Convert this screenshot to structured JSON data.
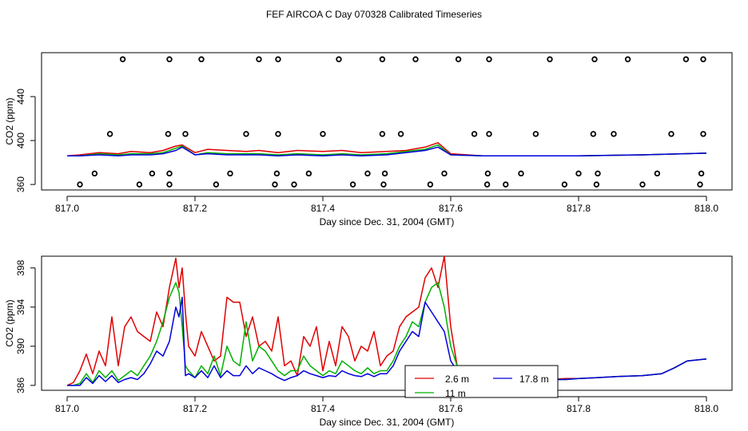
{
  "figure_title": "FEF AIRCOA C  Day 070328  Calibrated Timeseries",
  "colors": {
    "red": "#e00000",
    "green": "#00b000",
    "blue": "#0000dd",
    "black": "#000000"
  },
  "chart_data": [
    {
      "type": "line",
      "title": "",
      "xlabel": "Day since Dec. 31, 2004 (GMT)",
      "ylabel": "CO2 (ppm)",
      "xlim": [
        816.96,
        818.04
      ],
      "ylim": [
        355,
        480
      ],
      "x_ticks": [
        817.0,
        817.2,
        817.4,
        817.6,
        817.8,
        818.0
      ],
      "x_tick_labels": [
        "817.0",
        "817.2",
        "817.4",
        "817.6",
        "817.8",
        "818.0"
      ],
      "y_ticks": [
        360,
        400,
        440
      ],
      "y_tick_labels": [
        "360",
        "400",
        "440"
      ],
      "series": [
        {
          "name": "2.6 m",
          "color": "#e00000",
          "x": [
            817.0,
            817.02,
            817.05,
            817.08,
            817.1,
            817.13,
            817.15,
            817.17,
            817.18,
            817.2,
            817.22,
            817.25,
            817.28,
            817.3,
            817.33,
            817.36,
            817.4,
            817.43,
            817.46,
            817.5,
            817.53,
            817.56,
            817.58,
            817.6,
            817.65,
            817.7,
            817.8,
            817.9,
            818.0
          ],
          "values": [
            386,
            387,
            389,
            388,
            390,
            389,
            391,
            395,
            396,
            389,
            392,
            391,
            390,
            391,
            389,
            391,
            390,
            391,
            389,
            390,
            391,
            394,
            398,
            388,
            386,
            386,
            386,
            387,
            388.5
          ]
        },
        {
          "name": "11 m",
          "color": "#00b000",
          "x": [
            817.0,
            817.02,
            817.05,
            817.08,
            817.1,
            817.13,
            817.15,
            817.17,
            817.18,
            817.2,
            817.22,
            817.25,
            817.28,
            817.3,
            817.33,
            817.36,
            817.4,
            817.43,
            817.46,
            817.5,
            817.53,
            817.56,
            817.58,
            817.6,
            817.65,
            817.7,
            817.8,
            817.9,
            818.0
          ],
          "values": [
            386,
            386,
            388,
            387,
            388,
            388,
            389,
            393,
            395,
            387,
            389,
            388,
            388,
            388,
            387,
            388,
            387,
            388,
            387,
            388,
            390,
            392,
            396,
            387,
            386,
            386,
            386,
            387,
            388.5
          ]
        },
        {
          "name": "17.8 m",
          "color": "#0000dd",
          "x": [
            817.0,
            817.02,
            817.05,
            817.08,
            817.1,
            817.13,
            817.15,
            817.17,
            817.18,
            817.2,
            817.22,
            817.25,
            817.28,
            817.3,
            817.33,
            817.36,
            817.4,
            817.43,
            817.46,
            817.5,
            817.53,
            817.56,
            817.58,
            817.6,
            817.65,
            817.7,
            817.8,
            817.9,
            818.0
          ],
          "values": [
            386,
            386,
            387,
            386,
            387,
            387,
            388,
            391,
            394,
            387,
            388,
            387,
            387,
            387,
            386,
            387,
            386,
            387,
            386,
            387,
            389,
            391,
            394,
            387,
            386,
            386,
            386,
            387,
            388.5
          ]
        },
        {
          "name": "calibration",
          "color": "#000000",
          "style": "points",
          "x": [
            817.02,
            817.043,
            817.067,
            817.087,
            817.113,
            817.133,
            817.158,
            817.16,
            817.16,
            817.16,
            817.185,
            817.21,
            817.233,
            817.255,
            817.28,
            817.3,
            817.325,
            817.328,
            817.33,
            817.33,
            817.355,
            817.378,
            817.4,
            817.425,
            817.447,
            817.47,
            817.493,
            817.493,
            817.495,
            817.497,
            817.522,
            817.545,
            817.568,
            817.59,
            817.637,
            817.612,
            817.657,
            817.658,
            817.66,
            817.66,
            817.686,
            817.71,
            817.733,
            817.755,
            817.778,
            817.8,
            817.823,
            817.825,
            817.828,
            817.83,
            817.855,
            817.877,
            817.9,
            817.923,
            817.945,
            817.968,
            817.99,
            817.992,
            817.995,
            817.995
          ],
          "values": [
            360,
            370,
            406,
            474,
            360,
            370,
            406,
            474,
            360,
            370,
            406,
            474,
            360,
            370,
            406,
            474,
            360,
            370,
            406,
            474,
            360,
            370,
            406,
            474,
            360,
            370,
            406,
            474,
            360,
            370,
            406,
            474,
            360,
            370,
            406,
            474,
            360,
            370,
            406,
            474,
            360,
            370,
            406,
            474,
            360,
            370,
            406,
            474,
            360,
            370,
            406,
            474,
            360,
            370,
            406,
            474,
            360,
            370,
            406,
            474
          ]
        }
      ]
    },
    {
      "type": "line",
      "title": "",
      "xlabel": "Day since Dec. 31, 2004 (GMT)",
      "ylabel": "CO2 (ppm)",
      "xlim": [
        816.96,
        818.04
      ],
      "ylim": [
        385.5,
        399.2
      ],
      "x_ticks": [
        817.0,
        817.2,
        817.4,
        817.6,
        817.8,
        818.0
      ],
      "x_tick_labels": [
        "817.0",
        "817.2",
        "817.4",
        "817.6",
        "817.8",
        "818.0"
      ],
      "y_ticks": [
        386,
        390,
        394,
        398
      ],
      "y_tick_labels": [
        "386",
        "390",
        "394",
        "398"
      ],
      "legend": {
        "position": "bottom-center",
        "entries": [
          "2.6 m",
          "17.8 m",
          "11 m"
        ]
      },
      "series": [
        {
          "name": "2.6 m",
          "color": "#e00000",
          "x": [
            817.0,
            817.01,
            817.02,
            817.03,
            817.04,
            817.05,
            817.06,
            817.07,
            817.08,
            817.09,
            817.1,
            817.11,
            817.12,
            817.13,
            817.14,
            817.15,
            817.16,
            817.17,
            817.175,
            817.18,
            817.185,
            817.19,
            817.2,
            817.21,
            817.22,
            817.23,
            817.24,
            817.25,
            817.26,
            817.27,
            817.28,
            817.29,
            817.3,
            817.31,
            817.32,
            817.33,
            817.34,
            817.35,
            817.36,
            817.37,
            817.38,
            817.39,
            817.4,
            817.41,
            817.42,
            817.43,
            817.44,
            817.45,
            817.46,
            817.47,
            817.48,
            817.49,
            817.5,
            817.51,
            817.52,
            817.53,
            817.54,
            817.55,
            817.56,
            817.57,
            817.58,
            817.59,
            817.6,
            817.61,
            817.62,
            817.63,
            817.64,
            817.65,
            817.66,
            817.68,
            817.7,
            817.72,
            817.75,
            817.78,
            817.8,
            817.83,
            817.86,
            817.9,
            817.93,
            817.95,
            817.97,
            818.0
          ],
          "values": [
            386,
            386.3,
            387.5,
            389.2,
            387.2,
            389.5,
            388,
            393,
            388,
            392,
            393,
            391.5,
            391,
            390.5,
            393.5,
            392,
            396,
            399,
            396,
            398,
            393.5,
            390,
            389,
            391.5,
            390,
            388.5,
            389,
            395,
            394.5,
            394.5,
            391,
            393,
            390,
            390.5,
            389.5,
            393,
            388,
            388.5,
            387,
            391,
            390,
            392,
            387.5,
            390.5,
            388,
            392,
            391,
            388.5,
            390,
            389.5,
            391.5,
            388,
            389,
            389.5,
            392,
            393,
            393.5,
            394,
            397,
            398,
            396,
            399.2,
            392,
            388,
            387.5,
            387,
            386.8,
            387,
            386.5,
            386.5,
            386.5,
            386.6,
            386.6,
            386.7,
            386.7,
            386.8,
            386.9,
            387,
            387.2,
            387.8,
            388.5,
            388.7
          ]
        },
        {
          "name": "11 m",
          "color": "#00b000",
          "x": [
            817.0,
            817.01,
            817.02,
            817.03,
            817.04,
            817.05,
            817.06,
            817.07,
            817.08,
            817.09,
            817.1,
            817.11,
            817.12,
            817.13,
            817.14,
            817.15,
            817.16,
            817.17,
            817.175,
            817.18,
            817.185,
            817.19,
            817.2,
            817.21,
            817.22,
            817.23,
            817.24,
            817.25,
            817.26,
            817.27,
            817.28,
            817.29,
            817.3,
            817.31,
            817.32,
            817.33,
            817.34,
            817.35,
            817.36,
            817.37,
            817.38,
            817.39,
            817.4,
            817.41,
            817.42,
            817.43,
            817.44,
            817.45,
            817.46,
            817.47,
            817.48,
            817.49,
            817.5,
            817.51,
            817.52,
            817.53,
            817.54,
            817.55,
            817.56,
            817.57,
            817.58,
            817.59,
            817.6,
            817.61,
            817.62,
            817.63,
            817.64,
            817.65,
            817.66,
            817.68,
            817.7,
            817.72,
            817.75,
            817.78,
            817.8,
            817.83,
            817.86,
            817.9,
            817.93,
            817.95,
            817.97,
            818.0
          ],
          "values": [
            386,
            386,
            386.2,
            387.2,
            386.3,
            387.5,
            386.8,
            387.5,
            386.5,
            387,
            387.5,
            387,
            388,
            389,
            390.5,
            392.5,
            395,
            396.5,
            395.5,
            392,
            388,
            387.5,
            386.8,
            388,
            387.2,
            389,
            387,
            390,
            388.5,
            388,
            392.5,
            388.5,
            390,
            389.5,
            388.5,
            387.5,
            387,
            387.5,
            387.5,
            389,
            388,
            387.5,
            387,
            387.5,
            387.2,
            388.5,
            388,
            387.5,
            387.2,
            387.8,
            387.2,
            387.5,
            387.5,
            388.5,
            390,
            391,
            392.5,
            392,
            394.5,
            396,
            396.5,
            394,
            390,
            388,
            387,
            386.8,
            386.6,
            386.5,
            386.5,
            386.5,
            386.5,
            386.5,
            386.6,
            386.6,
            386.7,
            386.8,
            386.9,
            387,
            387.2,
            387.8,
            388.5,
            388.7
          ]
        },
        {
          "name": "17.8 m",
          "color": "#0000dd",
          "x": [
            817.0,
            817.01,
            817.02,
            817.03,
            817.04,
            817.05,
            817.06,
            817.07,
            817.08,
            817.09,
            817.1,
            817.11,
            817.12,
            817.13,
            817.14,
            817.15,
            817.16,
            817.17,
            817.175,
            817.18,
            817.185,
            817.19,
            817.2,
            817.21,
            817.22,
            817.23,
            817.24,
            817.25,
            817.26,
            817.27,
            817.28,
            817.29,
            817.3,
            817.31,
            817.32,
            817.33,
            817.34,
            817.35,
            817.36,
            817.37,
            817.38,
            817.39,
            817.4,
            817.41,
            817.42,
            817.43,
            817.44,
            817.45,
            817.46,
            817.47,
            817.48,
            817.49,
            817.5,
            817.51,
            817.52,
            817.53,
            817.54,
            817.55,
            817.56,
            817.57,
            817.58,
            817.59,
            817.6,
            817.61,
            817.62,
            817.63,
            817.64,
            817.65,
            817.66,
            817.68,
            817.7,
            817.72,
            817.75,
            817.78,
            817.8,
            817.83,
            817.86,
            817.9,
            817.93,
            817.95,
            817.97,
            818.0
          ],
          "values": [
            386,
            386,
            386,
            386.8,
            386.2,
            387,
            386.4,
            387,
            386.3,
            386.6,
            386.8,
            386.6,
            387.2,
            388.2,
            389.5,
            389,
            390.5,
            394,
            393,
            395,
            387,
            387.2,
            386.8,
            387.5,
            386.8,
            388,
            386.8,
            387.5,
            387,
            387,
            388,
            387.2,
            387.8,
            387.5,
            387.2,
            386.8,
            386.5,
            386.8,
            387,
            387.5,
            387.2,
            387,
            386.8,
            387,
            386.9,
            387.5,
            387.2,
            387,
            386.9,
            387.2,
            386.9,
            387.2,
            387.2,
            388,
            389.5,
            390.5,
            391.5,
            391,
            394.5,
            393.5,
            392.5,
            391.5,
            388.5,
            387.5,
            387,
            386.8,
            386.6,
            386.5,
            386.5,
            386.5,
            386.5,
            386.5,
            386.6,
            386.6,
            386.7,
            386.8,
            386.9,
            387,
            387.2,
            387.8,
            388.5,
            388.7
          ]
        }
      ]
    }
  ]
}
